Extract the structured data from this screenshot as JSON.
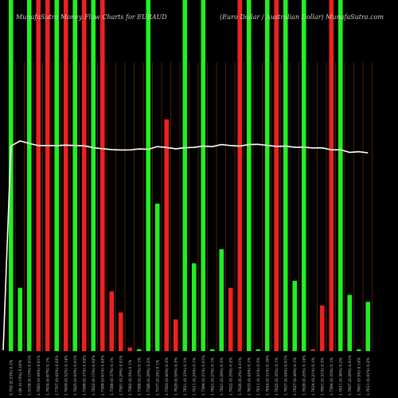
{
  "chart_data": {
    "type": "bar",
    "title": "MunafaSutra Money Flow Charts for EURAUD",
    "subtitle": "(Euro Dollar / Australian Dollar) MunafaSutra.com",
    "title_position": "top-left",
    "subtitle_position": "top-right",
    "background": "#000000",
    "grid": true,
    "grid_style": "vertical dark-orange lines between bars, lower band only",
    "bar_colors": {
      "up": "#22ee22",
      "down": "#ee2020"
    },
    "price_line_color": "#ffffff",
    "ylim": [
      0,
      100
    ],
    "x": [
      "5.792 (0.23%) 0.3%",
      "1.06 (0.15%) 0.02%",
      "1.3158 (0.15%) 0.01%",
      "1.7683 (0.44%) 0.01%",
      "1.7634 (0.67%) 0.1%",
      "1.7707 (0.42%) 0.02%",
      "1.7659 (0.52%) 0.14%",
      "1.7625 (0.43%) 0.01%",
      "1.7598 (0.37%) 0.02%",
      "1.7622 (0.15%) 0.02%",
      "1.7588 (0.61%) 0.02%",
      "1.7588 (0.37%) 0.1%",
      "1.7581 (0.29%) 0.01%",
      "1.7582 (0.3%) 0.1%",
      "1.7588 (0.27%) 0.1%",
      "1.7586 (0.29%) 0.2%",
      "1.7577 (0.2%) 0.1%",
      "1.7593 (0.40%) 0.3%",
      "1.7629 (0.55%) 0.3%",
      "1.7621 (0.33%) 0.1%",
      "1.7611 (0.24%) 0.1%",
      "1.7584 (0.21%) 0.01%",
      "1.7621 (0.27%) 0.1%",
      "1.7621 (0.28%) 0.3%",
      "1.7622 (0.25%) 0.2%",
      "1.7626 (0.2%) 0.01%",
      "1.7633 (0.44%) 0.1%",
      "1.7611 (0.31%) 0.3%",
      "1.7644 (0.31%) 0.16%",
      "1.7625 (0.35%) 0.1%",
      "1.7637 (0.44%) 0.01%",
      "1.7627 (0.38%) 0.1%",
      "1.7628 (0.25%) 0.14%",
      "1.7624 (0.21%) 0.1%",
      "1.7601 (0.31%) 0.3%",
      "1.7584 (0.35%) 0.1%",
      "1.7611 (0.36%) 0.2%",
      "1.7607 (0.28%) 0.01%",
      "1.7601 (0.5%) 0.14%",
      "1.7611 (0.41%) 0.2%"
    ],
    "series": [
      {
        "values": [
          100,
          18,
          100,
          100,
          100,
          100,
          100,
          100,
          100,
          100,
          100,
          17,
          11,
          1,
          0.5,
          100,
          42,
          66,
          9,
          100,
          25,
          100,
          0.5,
          29,
          18,
          100,
          100,
          0.5,
          100,
          100,
          100,
          20,
          100,
          0.5,
          13,
          100,
          100,
          16,
          0.5,
          14
        ],
        "colors": [
          "up",
          "up",
          "up",
          "down",
          "down",
          "up",
          "down",
          "up",
          "down",
          "up",
          "down",
          "down",
          "down",
          "down",
          "up",
          "up",
          "up",
          "down",
          "down",
          "up",
          "up",
          "up",
          "up",
          "up",
          "down",
          "down",
          "up",
          "up",
          "up",
          "down",
          "up",
          "up",
          "up",
          "down",
          "down",
          "down",
          "up",
          "up",
          "up",
          "up"
        ]
      },
      {
        "name": "",
        "values": [
          1.7581,
          1.7636,
          1.7608,
          1.7586,
          1.7587,
          1.7585,
          1.7591,
          1.7586,
          1.7583,
          1.7563,
          1.7552,
          1.7543,
          1.7538,
          1.7539,
          1.755,
          1.7546,
          1.7575,
          1.7565,
          1.7551,
          1.7563,
          1.7566,
          1.758,
          1.7575,
          1.7597,
          1.7586,
          1.758,
          1.7597,
          1.7599,
          1.7588,
          1.7577,
          1.758,
          1.7567,
          1.7568,
          1.756,
          1.7562,
          1.754,
          1.7541,
          1.7513,
          1.752,
          1.7508
        ],
        "color": "#ffffff"
      }
    ]
  }
}
